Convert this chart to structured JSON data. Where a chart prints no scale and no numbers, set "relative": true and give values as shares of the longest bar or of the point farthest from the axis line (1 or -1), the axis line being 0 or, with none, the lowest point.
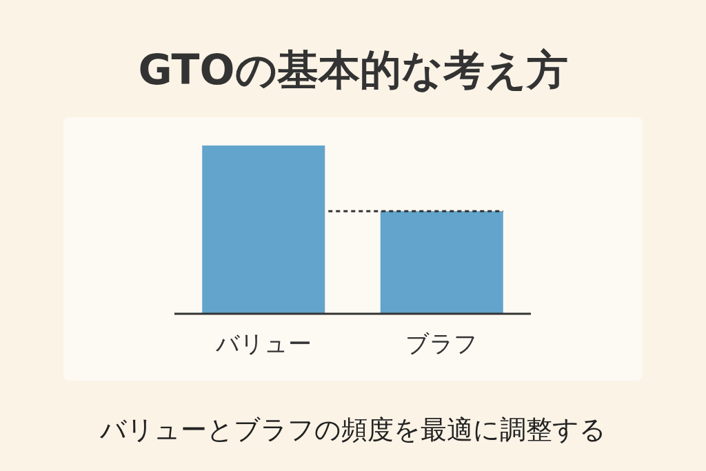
{
  "chart_data": {
    "type": "bar",
    "relative": true,
    "title": "GTOの基本的な考え方",
    "categories": [
      "バリュー",
      "ブラフ"
    ],
    "values": [
      1,
      0.61
    ],
    "color": "#62a4cb",
    "ref_lines": [
      {
        "axis": "y",
        "value": 0.61,
        "line_style": "dashed",
        "color": "#333333"
      }
    ],
    "annotations": [
      "バリューとブラフの頻度を最適に調整する"
    ]
  }
}
